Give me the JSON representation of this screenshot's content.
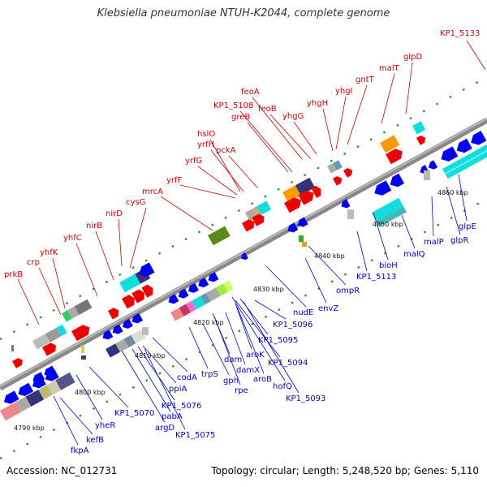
{
  "title": "Klebsiella pneumoniae NTUH-K2044, complete genome",
  "footer": {
    "accession": "Accession: NC_012731",
    "summary": "Topology: circular; Length: 5,248,520 bp; Genes: 5,110"
  },
  "colors": {
    "top_label": "#cc0000",
    "bottom_label": "#0000cc",
    "forward_gene": "#ee0000",
    "reverse_gene": "#0000ee",
    "backbone": "#888888",
    "tick_dots": "#228b22",
    "cds_cyan": "#11dddd",
    "cds_orange": "#ff9900",
    "cds_navy": "#333377",
    "cds_olive": "#5a8a1a",
    "cds_gray": "#bbbbbb"
  },
  "genome": {
    "organism": "Klebsiella pneumoniae NTUH-K2044",
    "accession": "NC_012731",
    "topology": "circular",
    "length_bp": 5248520,
    "gene_count": 5110,
    "window_kbp": [
      4785,
      4868
    ]
  },
  "ticks": [
    "4790 kbp",
    "4800 kbp",
    "4810 kbp",
    "4820 kbp",
    "4830 kbp",
    "4840 kbp",
    "4850 kbp",
    "4860 kbp"
  ],
  "top_genes": [
    "prkB",
    "crp",
    "yhfK",
    "yhfC",
    "nirB",
    "nirD",
    "cysG",
    "mrcA",
    "yrfF",
    "yrfG",
    "hslO",
    "yrfH",
    "pckA",
    "greB",
    "KP1_5108",
    "feoA",
    "feoB",
    "yhgG",
    "yhgH",
    "yhgI",
    "gntT",
    "malT",
    "glpD",
    "KP1_5133"
  ],
  "bottom_genes": [
    "fkpA",
    "kefB",
    "yheR",
    "KP1_5070",
    "argD",
    "pabA",
    "KP1_5076",
    "KP1_5075",
    "ppiA",
    "codA",
    "trpS",
    "gph",
    "rpe",
    "dam",
    "damX",
    "aroK",
    "aroB",
    "KP1_5095",
    "KP1_5094",
    "hofQ",
    "KP1_5093",
    "KP1_5096",
    "nudE",
    "envZ",
    "ompR",
    "KP1_5113",
    "bioH",
    "malQ",
    "malP",
    "glpR",
    "glpE"
  ]
}
